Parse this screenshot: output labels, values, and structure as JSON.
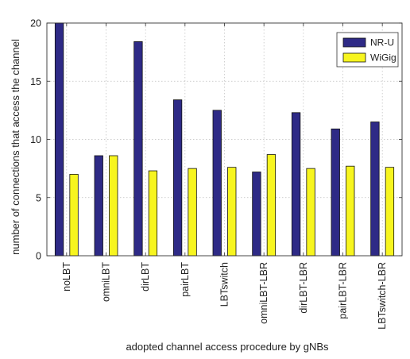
{
  "chart_data": {
    "type": "bar",
    "title": "",
    "xlabel": "adopted channel access procedure by gNBs",
    "ylabel": "number of connections that access the channel",
    "ylim": [
      0,
      20
    ],
    "yticks": [
      "0",
      "5",
      "10",
      "15",
      "20"
    ],
    "grid": "on (dotted)",
    "legend_position": "top-right",
    "categories": [
      "noLBT",
      "omniLBT",
      "dirLBT",
      "pairLBT",
      "LBTswitch",
      "omniLBT-LBR",
      "dirLBT-LBR",
      "pairLBT-LBR",
      "LBTswitch-LBR"
    ],
    "series": [
      {
        "name": "NR-U",
        "color": "#2e2a86",
        "values": [
          20.0,
          8.6,
          18.4,
          13.4,
          12.5,
          7.2,
          12.3,
          10.9,
          11.5
        ]
      },
      {
        "name": "WiGig",
        "color": "#f7f51f",
        "values": [
          7.0,
          8.6,
          7.3,
          7.5,
          7.6,
          8.7,
          7.5,
          7.7,
          7.6
        ]
      }
    ]
  }
}
